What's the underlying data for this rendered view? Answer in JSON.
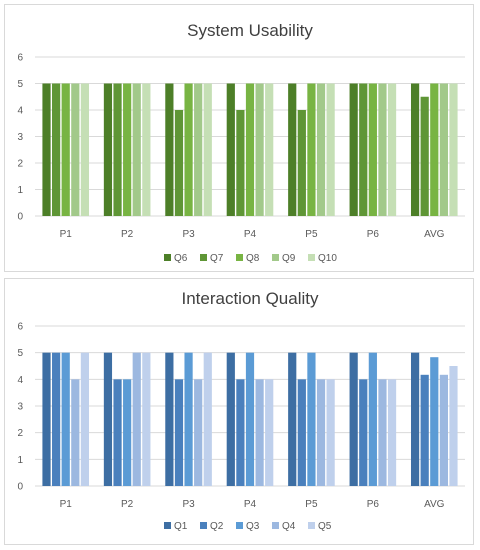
{
  "chart_data": [
    {
      "type": "bar",
      "title": "System Usability",
      "categories": [
        "P1",
        "P2",
        "P3",
        "P4",
        "P5",
        "P6",
        "AVG"
      ],
      "ylim": [
        0,
        6
      ],
      "yticks": [
        0,
        1,
        2,
        3,
        4,
        5,
        6
      ],
      "grid": true,
      "legend_position": "bottom",
      "series": [
        {
          "name": "Q6",
          "color": "#4d7f28",
          "values": [
            5,
            5,
            5,
            5,
            5,
            5,
            5
          ]
        },
        {
          "name": "Q7",
          "color": "#5f9636",
          "values": [
            5,
            5,
            4,
            4,
            4,
            5,
            4.5
          ]
        },
        {
          "name": "Q8",
          "color": "#78b443",
          "values": [
            5,
            5,
            5,
            5,
            5,
            5,
            5
          ]
        },
        {
          "name": "Q9",
          "color": "#a2c98a",
          "values": [
            5,
            5,
            5,
            5,
            5,
            5,
            5
          ]
        },
        {
          "name": "Q10",
          "color": "#c5dfb5",
          "values": [
            5,
            5,
            5,
            5,
            5,
            5,
            5
          ]
        }
      ]
    },
    {
      "type": "bar",
      "title": "Interaction Quality",
      "categories": [
        "P1",
        "P2",
        "P3",
        "P4",
        "P5",
        "P6",
        "AVG"
      ],
      "ylim": [
        0,
        6
      ],
      "yticks": [
        0,
        1,
        2,
        3,
        4,
        5,
        6
      ],
      "grid": true,
      "legend_position": "bottom",
      "series": [
        {
          "name": "Q1",
          "color": "#3d6ea3",
          "values": [
            5,
            5,
            5,
            5,
            5,
            5,
            5
          ]
        },
        {
          "name": "Q2",
          "color": "#4a80bd",
          "values": [
            5,
            4,
            4,
            4,
            4,
            4,
            4.17
          ]
        },
        {
          "name": "Q3",
          "color": "#5b9bd5",
          "values": [
            5,
            4,
            5,
            5,
            5,
            5,
            4.83
          ]
        },
        {
          "name": "Q4",
          "color": "#9cb8e0",
          "values": [
            4,
            5,
            4,
            4,
            4,
            4,
            4.17
          ]
        },
        {
          "name": "Q5",
          "color": "#bfd0ec",
          "values": [
            5,
            5,
            5,
            4,
            4,
            4,
            4.5
          ]
        }
      ]
    }
  ]
}
